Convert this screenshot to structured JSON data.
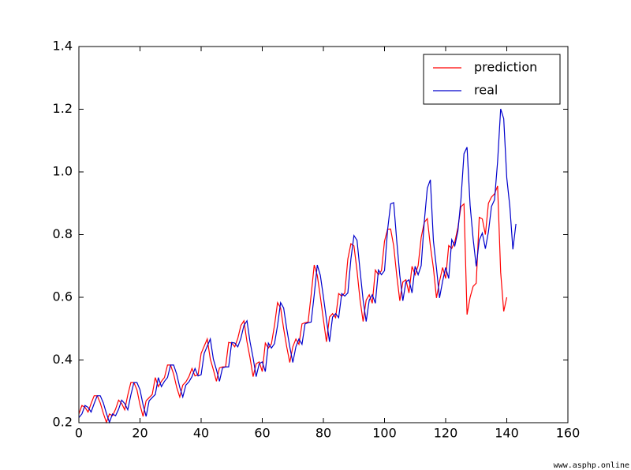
{
  "chart_data": {
    "type": "line",
    "xlim": [
      0,
      160
    ],
    "xticks": [
      0,
      20,
      40,
      60,
      80,
      100,
      120,
      140,
      160
    ],
    "ylim": [
      0.2,
      1.4
    ],
    "yticks": [
      0.2,
      0.4,
      0.6,
      0.8,
      {
        "value": 1,
        "label": "1.0"
      },
      1.2,
      1.4
    ],
    "legend": "upper right",
    "grid": false,
    "series": [
      {
        "name": "prediction",
        "color": "#ff0000",
        "values": [
          0.228,
          0.255,
          0.249,
          0.234,
          0.261,
          0.286,
          0.286,
          0.263,
          0.23,
          0.201,
          0.228,
          0.222,
          0.243,
          0.272,
          0.261,
          0.241,
          0.288,
          0.328,
          0.328,
          0.305,
          0.257,
          0.22,
          0.27,
          0.28,
          0.29,
          0.344,
          0.315,
          0.332,
          0.344,
          0.384,
          0.384,
          0.355,
          0.313,
          0.282,
          0.32,
          0.33,
          0.347,
          0.373,
          0.349,
          0.353,
          0.421,
          0.444,
          0.467,
          0.403,
          0.369,
          0.332,
          0.375,
          0.378,
          0.378,
          0.456,
          0.454,
          0.442,
          0.469,
          0.51,
          0.525,
          0.458,
          0.407,
          0.347,
          0.388,
          0.394,
          0.363,
          0.454,
          0.438,
          0.452,
          0.51,
          0.583,
          0.566,
          0.5,
          0.442,
          0.392,
          0.442,
          0.467,
          0.45,
          0.515,
          0.519,
          0.521,
          0.608,
          0.703,
          0.67,
          0.602,
          0.529,
          0.458,
          0.537,
          0.548,
          0.535,
          0.612,
          0.604,
          0.614,
          0.722,
          0.771,
          0.764,
          0.685,
          0.591,
          0.523,
          0.591,
          0.608,
          0.581,
          0.687,
          0.672,
          0.685,
          0.779,
          0.817,
          0.818,
          0.764,
          0.67,
          0.589,
          0.649,
          0.656,
          0.614,
          0.699,
          0.672,
          0.701,
          0.791,
          0.839,
          0.851,
          0.764,
          0.693,
          0.598,
          0.651,
          0.695,
          0.66,
          0.765,
          0.756,
          0.777,
          0.822,
          0.889,
          0.898,
          0.545,
          0.6,
          0.635,
          0.645,
          0.855,
          0.85,
          0.8,
          0.9,
          0.92,
          0.93,
          0.955,
          0.68,
          0.555,
          0.6
        ]
      },
      {
        "name": "real",
        "color": "#0000cc",
        "values": [
          0.216,
          0.228,
          0.255,
          0.249,
          0.234,
          0.261,
          0.286,
          0.286,
          0.263,
          0.23,
          0.201,
          0.228,
          0.222,
          0.243,
          0.272,
          0.261,
          0.241,
          0.288,
          0.328,
          0.328,
          0.305,
          0.257,
          0.22,
          0.27,
          0.28,
          0.29,
          0.344,
          0.315,
          0.332,
          0.344,
          0.384,
          0.384,
          0.355,
          0.313,
          0.282,
          0.32,
          0.33,
          0.347,
          0.373,
          0.349,
          0.353,
          0.421,
          0.444,
          0.467,
          0.403,
          0.369,
          0.332,
          0.375,
          0.378,
          0.378,
          0.456,
          0.454,
          0.442,
          0.469,
          0.51,
          0.525,
          0.458,
          0.407,
          0.347,
          0.388,
          0.394,
          0.363,
          0.454,
          0.438,
          0.452,
          0.51,
          0.583,
          0.566,
          0.5,
          0.442,
          0.392,
          0.442,
          0.467,
          0.45,
          0.515,
          0.519,
          0.521,
          0.608,
          0.703,
          0.67,
          0.602,
          0.529,
          0.458,
          0.537,
          0.548,
          0.535,
          0.612,
          0.604,
          0.614,
          0.722,
          0.797,
          0.782,
          0.685,
          0.591,
          0.523,
          0.591,
          0.608,
          0.581,
          0.687,
          0.672,
          0.685,
          0.815,
          0.898,
          0.902,
          0.78,
          0.67,
          0.589,
          0.649,
          0.656,
          0.614,
          0.699,
          0.672,
          0.701,
          0.84,
          0.948,
          0.975,
          0.78,
          0.693,
          0.598,
          0.651,
          0.695,
          0.66,
          0.784,
          0.764,
          0.811,
          0.911,
          1.058,
          1.079,
          0.894,
          0.786,
          0.699,
          0.782,
          0.805,
          0.755,
          0.809,
          0.89,
          0.911,
          1.033,
          1.201,
          1.17,
          0.981,
          0.89,
          0.753,
          0.834
        ]
      }
    ]
  },
  "watermark": "www.asphp.online"
}
